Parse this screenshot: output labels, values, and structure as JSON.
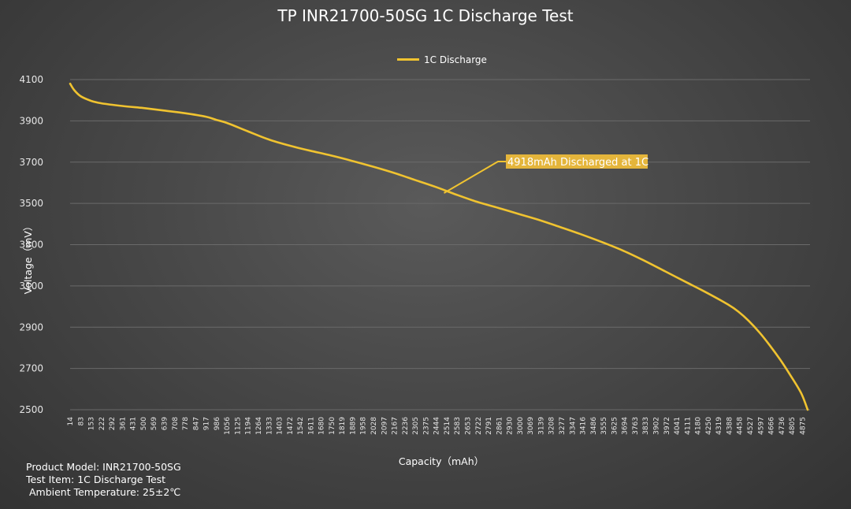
{
  "chart_data": {
    "type": "line",
    "title": "TP INR21700-50SG 1C Discharge Test",
    "xlabel": "Capacity（mAh）",
    "ylabel": "Voltage（mV）",
    "ylim": [
      2500,
      4100
    ],
    "yticks": [
      4100,
      3900,
      3700,
      3500,
      3300,
      3100,
      2900,
      2700,
      2500
    ],
    "xticks": [
      "14",
      "83",
      "153",
      "222",
      "292",
      "361",
      "431",
      "500",
      "569",
      "639",
      "708",
      "778",
      "847",
      "917",
      "986",
      "1056",
      "1125",
      "1194",
      "1264",
      "1333",
      "1403",
      "1472",
      "1542",
      "1611",
      "1680",
      "1750",
      "1819",
      "1889",
      "1958",
      "2028",
      "2097",
      "2167",
      "2236",
      "2305",
      "2375",
      "2444",
      "2514",
      "2583",
      "2653",
      "2722",
      "2791",
      "2861",
      "2930",
      "3000",
      "3069",
      "3139",
      "3208",
      "3277",
      "3347",
      "3416",
      "3486",
      "3555",
      "3625",
      "3694",
      "3763",
      "3833",
      "3902",
      "3972",
      "4041",
      "4111",
      "4180",
      "4250",
      "4319",
      "4388",
      "4458",
      "4527",
      "4597",
      "4666",
      "4736",
      "4805",
      "4875"
    ],
    "xlim": [
      14,
      4918
    ],
    "grid": true,
    "legend_position": "top-center",
    "series": [
      {
        "name": "1C Discharge",
        "color": "#f0c330",
        "x": [
          14,
          40,
          83,
          153,
          222,
          361,
          500,
          639,
          778,
          917,
          986,
          1056,
          1194,
          1333,
          1472,
          1611,
          1750,
          1889,
          2028,
          2167,
          2305,
          2444,
          2583,
          2722,
          2861,
          3000,
          3139,
          3277,
          3416,
          3555,
          3694,
          3833,
          3972,
          4111,
          4250,
          4388,
          4458,
          4527,
          4597,
          4666,
          4736,
          4805,
          4875,
          4918
        ],
        "y": [
          4080,
          4050,
          4020,
          3997,
          3985,
          3972,
          3962,
          3950,
          3937,
          3920,
          3905,
          3890,
          3850,
          3810,
          3780,
          3755,
          3732,
          3706,
          3678,
          3648,
          3614,
          3580,
          3542,
          3507,
          3478,
          3448,
          3418,
          3384,
          3349,
          3311,
          3270,
          3222,
          3170,
          3118,
          3066,
          3010,
          2975,
          2930,
          2875,
          2812,
          2742,
          2665,
          2580,
          2500
        ]
      }
    ],
    "annotations": [
      {
        "text": "4918mAh Discharged at 1C",
        "x": 2500,
        "y": 3550,
        "bg": "#e4b53b"
      }
    ]
  },
  "info": {
    "model": "Product Model: INR21700-50SG",
    "test_item": "Test Item: 1C Discharge Test",
    "ambient": " Ambient Temperature: 25±2℃"
  }
}
